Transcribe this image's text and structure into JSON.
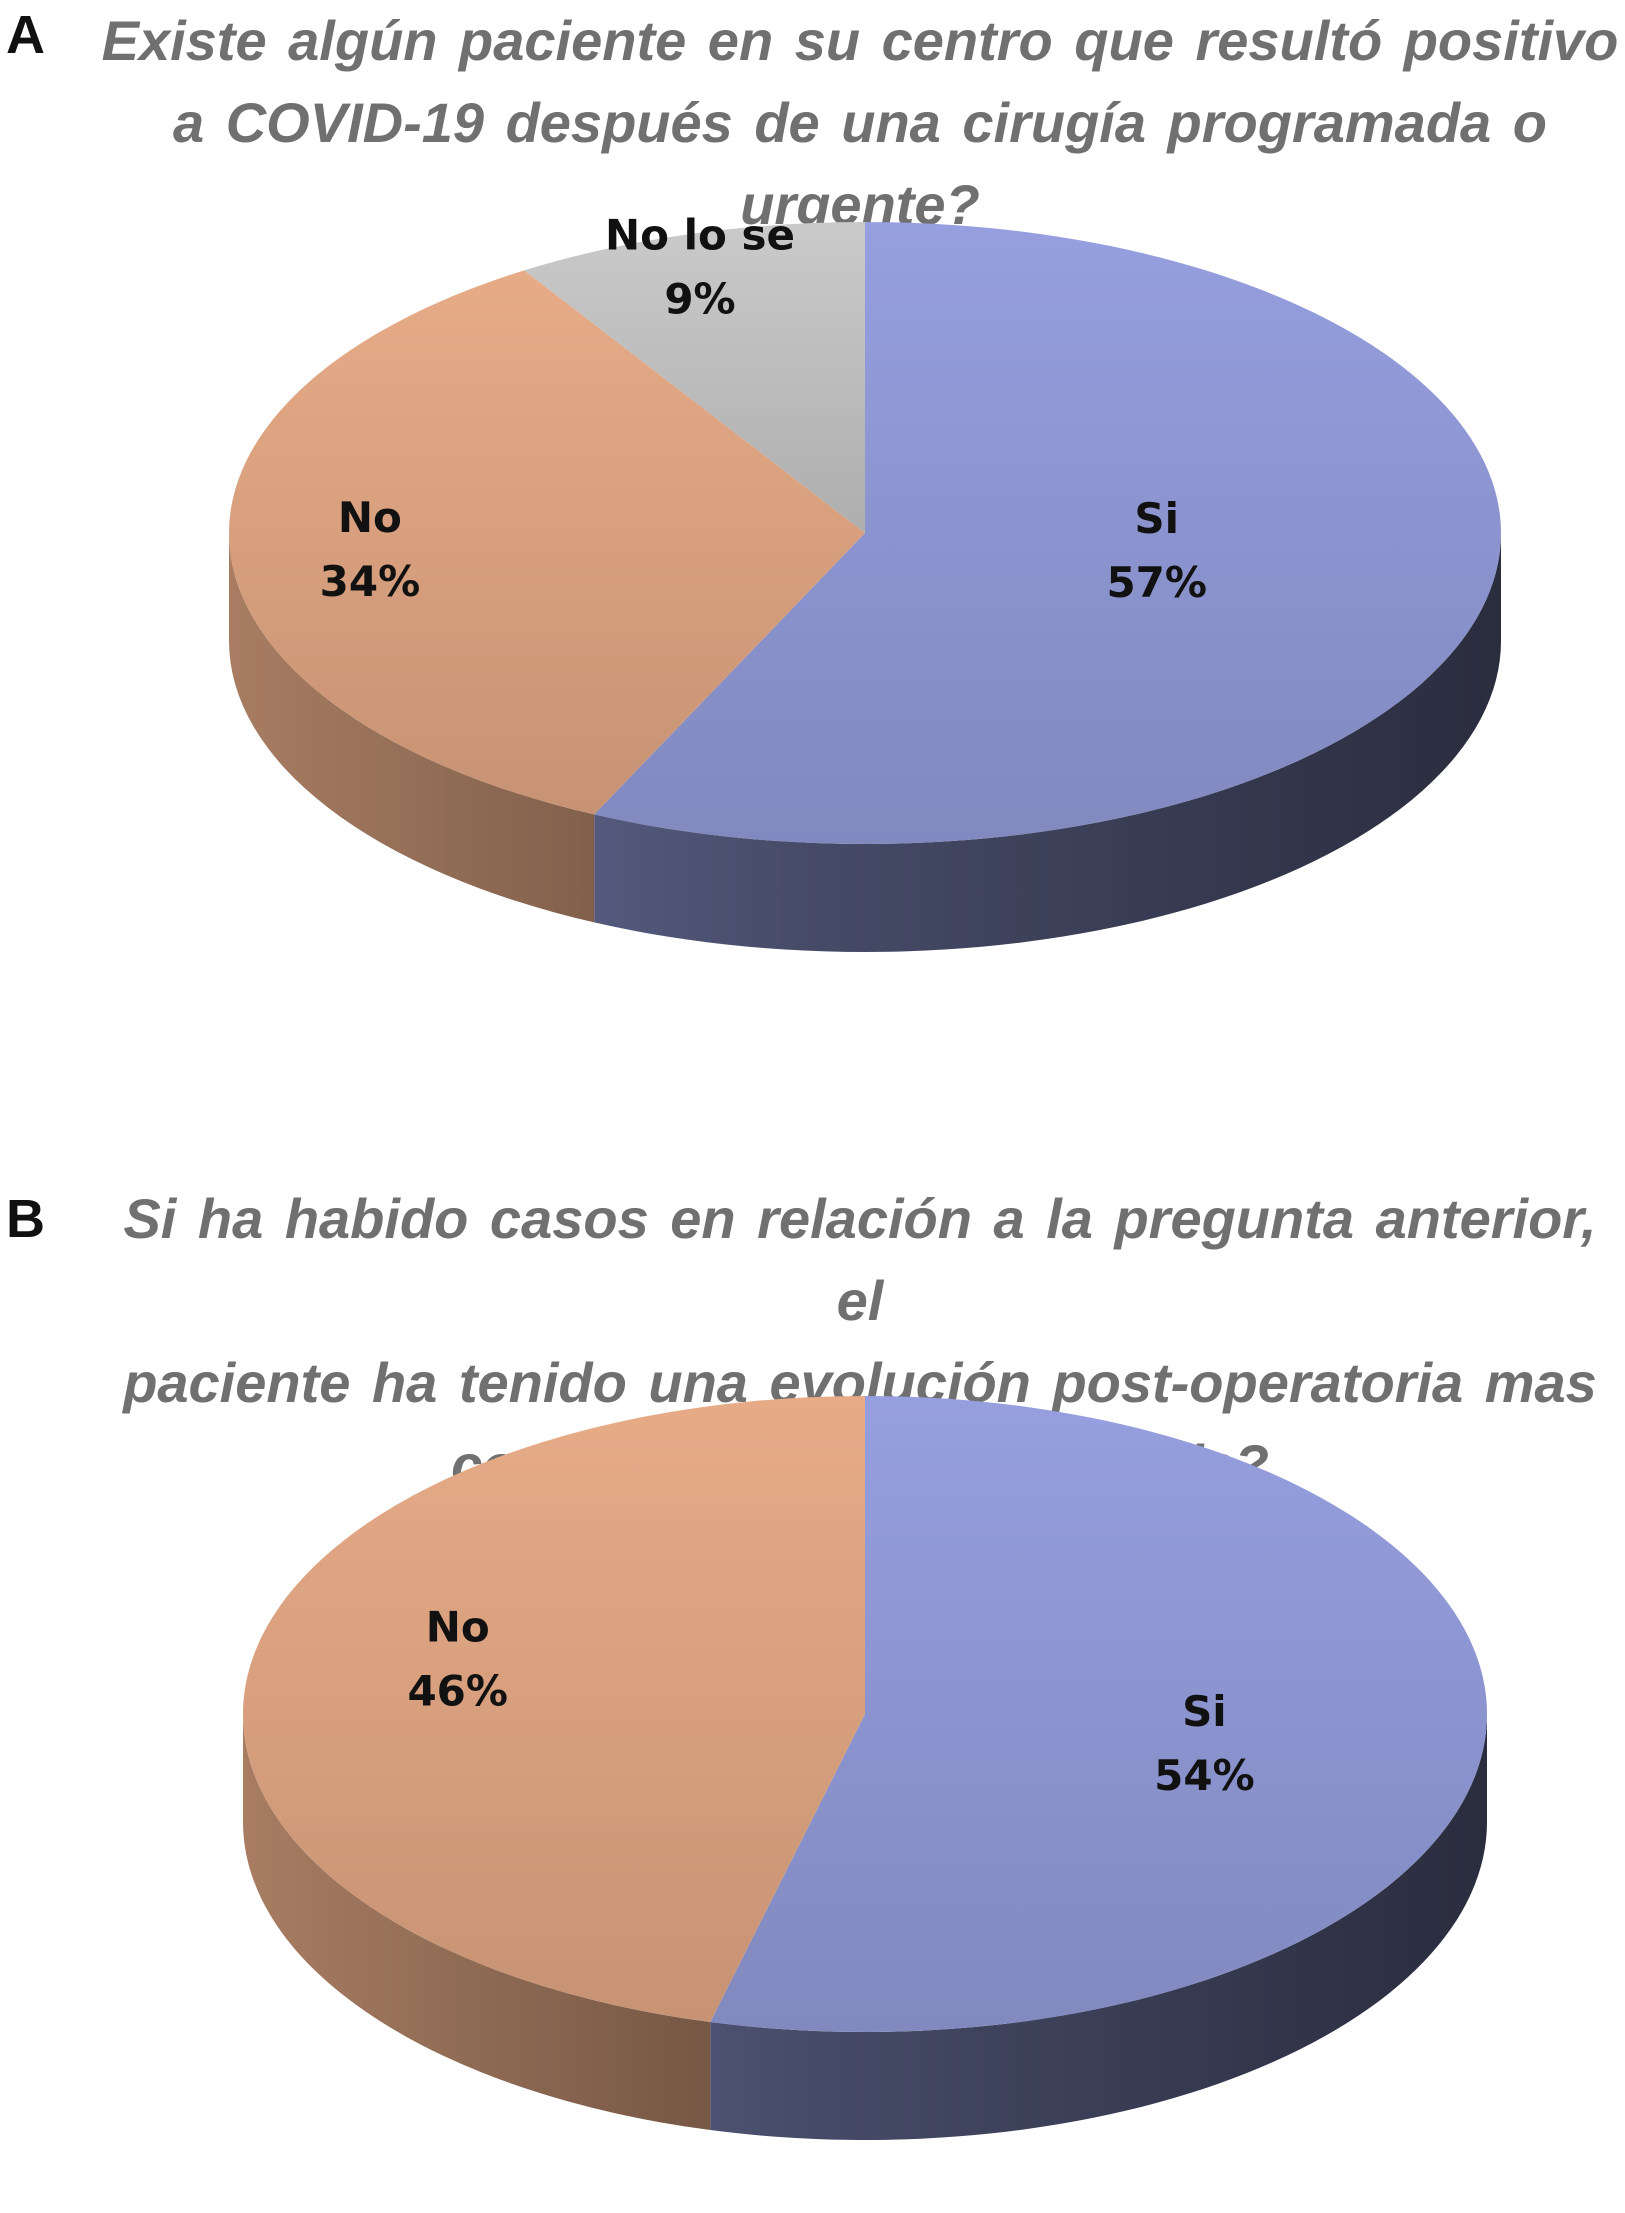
{
  "chart_data": [
    {
      "type": "pie",
      "panel": "A",
      "title_lines": [
        "Existe algún  paciente  en su centro que  resultó  positivo",
        "a COVID-19  después  de una cirugía  programada  o",
        "urgente?"
      ],
      "slices": [
        {
          "label": "Si",
          "value": 57,
          "value_label": "57%",
          "color": "#8c95d0"
        },
        {
          "label": "No",
          "value": 34,
          "value_label": "34%",
          "color": "#d8a07e"
        },
        {
          "label": "No lo se",
          "value": 9,
          "value_label": "9%",
          "color": "#bdbdbd"
        }
      ]
    },
    {
      "type": "pie",
      "panel": "B",
      "title_lines": [
        "Si ha habido  casos  en relación  a la pregunta  anterior,  el",
        "paciente  ha tenido  una evolución  post-operatoria  mas",
        "complicada  que lo esperable?"
      ],
      "slices": [
        {
          "label": "Si",
          "value": 54,
          "value_label": "54%",
          "color": "#8c95d0"
        },
        {
          "label": "No",
          "value": 46,
          "value_label": "46%",
          "color": "#d8a07e"
        }
      ]
    }
  ],
  "colors": {
    "si_top": "#8c95d0",
    "si_side_dark": "#2c3044",
    "no_top": "#d8a07e",
    "no_side_dark": "#7f5a46",
    "nolose_top": "#bdbdbd",
    "title_gray": "#707070"
  }
}
